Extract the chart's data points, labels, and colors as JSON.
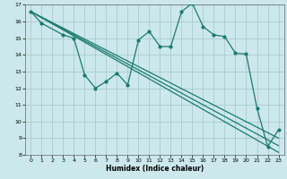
{
  "title": "",
  "xlabel": "Humidex (Indice chaleur)",
  "bg_color": "#cce8ec",
  "grid_color": "#aacccc",
  "line_color": "#1a7a6e",
  "xlim": [
    -0.5,
    23.5
  ],
  "ylim": [
    8,
    17
  ],
  "yticks": [
    8,
    9,
    10,
    11,
    12,
    13,
    14,
    15,
    16,
    17
  ],
  "xticks": [
    0,
    1,
    2,
    3,
    4,
    5,
    6,
    7,
    8,
    9,
    10,
    11,
    12,
    13,
    14,
    15,
    16,
    17,
    18,
    19,
    20,
    21,
    22,
    23
  ],
  "lines": [
    {
      "x": [
        0,
        1,
        3,
        4,
        5,
        6,
        7,
        8,
        9,
        10,
        11,
        12,
        13,
        14,
        15,
        16,
        17,
        18,
        19,
        20,
        21,
        22,
        23
      ],
      "y": [
        16.6,
        15.9,
        15.2,
        15.0,
        12.8,
        12.0,
        12.4,
        12.9,
        12.2,
        14.9,
        15.4,
        14.5,
        14.5,
        16.6,
        17.1,
        15.7,
        15.2,
        15.1,
        14.1,
        14.05,
        10.8,
        8.5,
        9.5
      ],
      "marker": true,
      "lw": 0.9
    },
    {
      "x": [
        0,
        23
      ],
      "y": [
        16.6,
        8.15
      ],
      "marker": false,
      "lw": 0.9
    },
    {
      "x": [
        0,
        23
      ],
      "y": [
        16.6,
        8.55
      ],
      "marker": false,
      "lw": 0.9
    },
    {
      "x": [
        0,
        23
      ],
      "y": [
        16.6,
        9.0
      ],
      "marker": false,
      "lw": 0.9
    }
  ]
}
